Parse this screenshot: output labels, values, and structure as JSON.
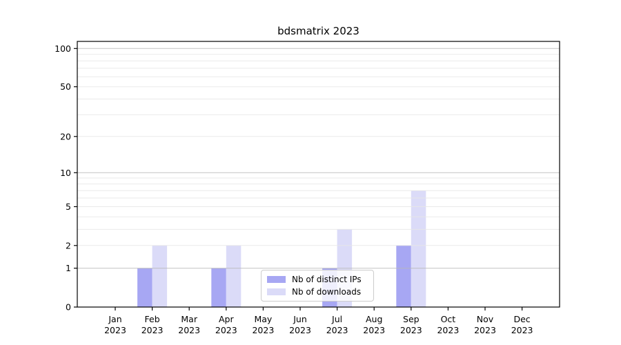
{
  "title": "bdsmatrix 2023",
  "chart_data": {
    "type": "bar",
    "title": "bdsmatrix 2023",
    "categories": [
      "Jan",
      "Feb",
      "Mar",
      "Apr",
      "May",
      "Jun",
      "Jul",
      "Aug",
      "Sep",
      "Oct",
      "Nov",
      "Dec"
    ],
    "x_year_label": "2023",
    "series": [
      {
        "name": "Nb of distinct IPs",
        "color": "#a7a7f3",
        "values": [
          0,
          1,
          0,
          1,
          0,
          0,
          1,
          0,
          2,
          0,
          0,
          0
        ]
      },
      {
        "name": "Nb of downloads",
        "color": "#dbdbf8",
        "values": [
          0,
          2,
          0,
          2,
          0,
          0,
          3,
          0,
          7,
          0,
          0,
          0
        ]
      }
    ],
    "xlabel": "",
    "ylabel": "",
    "y_scale": "log1p",
    "y_tick_values": [
      0,
      1,
      2,
      5,
      10,
      20,
      50,
      100
    ],
    "y_tick_labels": [
      "0",
      "1",
      "2",
      "5",
      "10",
      "20",
      "50",
      "100"
    ],
    "ylim": [
      0,
      113.6
    ],
    "grid": true,
    "legend_position": "lower center"
  },
  "colors": {
    "axis": "#000000",
    "grid_major": "#b8b8b8",
    "grid_minor": "#e7e7e7",
    "background": "#ffffff"
  }
}
